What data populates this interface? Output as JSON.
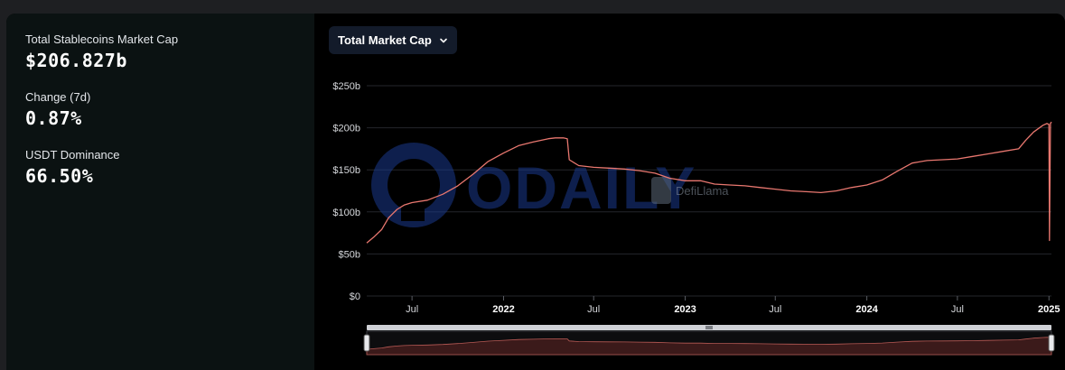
{
  "stats": [
    {
      "label": "Total Stablecoins Market Cap",
      "value": "$206.827b"
    },
    {
      "label": "Change (7d)",
      "value": "0.87%"
    },
    {
      "label": "USDT Dominance",
      "value": "66.50%"
    }
  ],
  "selector": {
    "label": "Total Market Cap",
    "icon": "chevron-down-icon"
  },
  "watermarks": {
    "odaily": "ODAILY",
    "defillama": "DefiLlama"
  },
  "colors": {
    "line": "#e8776f",
    "grid": "#24262b",
    "slider_fill": "#3b1a1a",
    "slider_line": "#b85a55"
  },
  "chart_data": {
    "type": "line",
    "title": "",
    "xlabel": "",
    "ylabel": "",
    "yticks": [
      {
        "value": 0,
        "label": "$0"
      },
      {
        "value": 50,
        "label": "$50b"
      },
      {
        "value": 100,
        "label": "$100b"
      },
      {
        "value": 150,
        "label": "$150b"
      },
      {
        "value": 200,
        "label": "$200b"
      },
      {
        "value": 250,
        "label": "$250b"
      }
    ],
    "ylim": [
      0,
      250
    ],
    "xlim": [
      "2021-04-01",
      "2025-01-06"
    ],
    "xticks": [
      {
        "date": "2021-07-01",
        "label": "Jul",
        "bold": false
      },
      {
        "date": "2022-01-01",
        "label": "2022",
        "bold": true
      },
      {
        "date": "2022-07-01",
        "label": "Jul",
        "bold": false
      },
      {
        "date": "2023-01-01",
        "label": "2023",
        "bold": true
      },
      {
        "date": "2023-07-01",
        "label": "Jul",
        "bold": false
      },
      {
        "date": "2024-01-01",
        "label": "2024",
        "bold": true
      },
      {
        "date": "2024-07-01",
        "label": "Jul",
        "bold": false
      },
      {
        "date": "2025-01-01",
        "label": "2025",
        "bold": true
      }
    ],
    "series": [
      {
        "points": [
          [
            "2021-04-01",
            63
          ],
          [
            "2021-04-15",
            70
          ],
          [
            "2021-05-01",
            79
          ],
          [
            "2021-05-15",
            93
          ],
          [
            "2021-06-01",
            103
          ],
          [
            "2021-06-15",
            108
          ],
          [
            "2021-07-01",
            111
          ],
          [
            "2021-08-01",
            114
          ],
          [
            "2021-09-01",
            121
          ],
          [
            "2021-10-01",
            131
          ],
          [
            "2021-11-01",
            145
          ],
          [
            "2021-12-01",
            160
          ],
          [
            "2022-01-01",
            170
          ],
          [
            "2022-02-01",
            179
          ],
          [
            "2022-03-01",
            183
          ],
          [
            "2022-04-01",
            187
          ],
          [
            "2022-04-15",
            188
          ],
          [
            "2022-05-01",
            188
          ],
          [
            "2022-05-09",
            187
          ],
          [
            "2022-05-13",
            162
          ],
          [
            "2022-06-01",
            155
          ],
          [
            "2022-07-01",
            153
          ],
          [
            "2022-08-01",
            152
          ],
          [
            "2022-09-01",
            151
          ],
          [
            "2022-10-01",
            149
          ],
          [
            "2022-11-01",
            146
          ],
          [
            "2022-12-01",
            140
          ],
          [
            "2023-01-01",
            137
          ],
          [
            "2023-02-01",
            137
          ],
          [
            "2023-03-01",
            133
          ],
          [
            "2023-04-01",
            132
          ],
          [
            "2023-05-01",
            131
          ],
          [
            "2023-06-01",
            129
          ],
          [
            "2023-07-01",
            127
          ],
          [
            "2023-08-01",
            125
          ],
          [
            "2023-09-01",
            124
          ],
          [
            "2023-10-01",
            123
          ],
          [
            "2023-11-01",
            125
          ],
          [
            "2023-12-01",
            129
          ],
          [
            "2024-01-01",
            132
          ],
          [
            "2024-02-01",
            138
          ],
          [
            "2024-03-01",
            148
          ],
          [
            "2024-04-01",
            158
          ],
          [
            "2024-05-01",
            161
          ],
          [
            "2024-06-01",
            162
          ],
          [
            "2024-07-01",
            163
          ],
          [
            "2024-08-01",
            166
          ],
          [
            "2024-09-01",
            169
          ],
          [
            "2024-10-01",
            172
          ],
          [
            "2024-11-01",
            175
          ],
          [
            "2024-11-15",
            185
          ],
          [
            "2024-12-01",
            195
          ],
          [
            "2024-12-20",
            203
          ],
          [
            "2024-12-28",
            205
          ],
          [
            "2025-01-01",
            204
          ],
          [
            "2025-01-02",
            66
          ],
          [
            "2025-01-04",
            205
          ],
          [
            "2025-01-06",
            207
          ]
        ]
      }
    ],
    "grid": true,
    "legend": "none",
    "range_slider": true
  }
}
